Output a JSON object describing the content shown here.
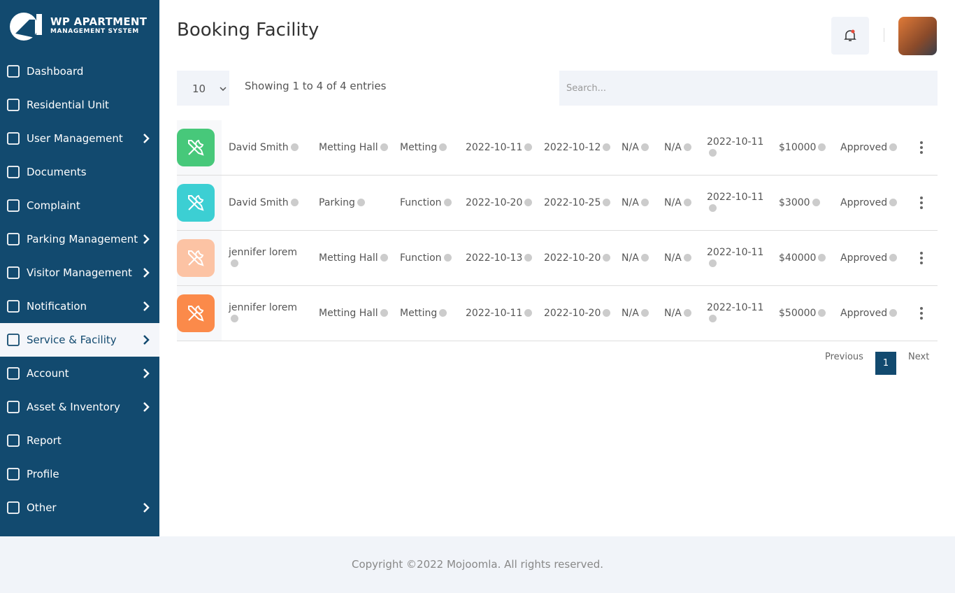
{
  "brand": {
    "line1": "WP APARTMENT",
    "line2": "MANAGEMENT SYSTEM"
  },
  "sidebar": {
    "items": [
      {
        "label": "Dashboard",
        "submenu": false,
        "active": false
      },
      {
        "label": "Residential Unit",
        "submenu": false,
        "active": false
      },
      {
        "label": "User Management",
        "submenu": true,
        "active": false
      },
      {
        "label": "Documents",
        "submenu": false,
        "active": false
      },
      {
        "label": "Complaint",
        "submenu": false,
        "active": false
      },
      {
        "label": "Parking Management",
        "submenu": true,
        "active": false
      },
      {
        "label": "Visitor Management",
        "submenu": true,
        "active": false
      },
      {
        "label": "Notification",
        "submenu": true,
        "active": false
      },
      {
        "label": "Service & Facility",
        "submenu": true,
        "active": true
      },
      {
        "label": "Account",
        "submenu": true,
        "active": false
      },
      {
        "label": "Asset & Inventory",
        "submenu": true,
        "active": false
      },
      {
        "label": "Report",
        "submenu": false,
        "active": false
      },
      {
        "label": "Profile",
        "submenu": false,
        "active": false
      },
      {
        "label": "Other",
        "submenu": true,
        "active": false
      }
    ]
  },
  "header": {
    "title": "Booking Facility"
  },
  "controls": {
    "page_size": "10",
    "info": "Showing 1 to 4 of 4 entries",
    "search_placeholder": "Search..."
  },
  "table": {
    "rows": [
      {
        "icon_color": "#47c87a",
        "cells": [
          "David Smith",
          "Metting Hall",
          "Metting",
          "2022-10-11",
          "2022-10-12",
          "N/A",
          "N/A",
          "2022-10-11",
          "$10000",
          "Approved"
        ]
      },
      {
        "icon_color": "#3ccfd3",
        "cells": [
          "David Smith",
          "Parking",
          "Function",
          "2022-10-20",
          "2022-10-25",
          "N/A",
          "N/A",
          "2022-10-11",
          "$3000",
          "Approved"
        ]
      },
      {
        "icon_color": "#fcc3a4",
        "cells": [
          "jennifer lorem",
          "Metting Hall",
          "Function",
          "2022-10-13",
          "2022-10-20",
          "N/A",
          "N/A",
          "2022-10-11",
          "$40000",
          "Approved"
        ]
      },
      {
        "icon_color": "#fb8a4a",
        "cells": [
          "jennifer lorem",
          "Metting Hall",
          "Metting",
          "2022-10-11",
          "2022-10-20",
          "N/A",
          "N/A",
          "2022-10-11",
          "$50000",
          "Approved"
        ]
      }
    ]
  },
  "pagination": {
    "previous": "Previous",
    "current": "1",
    "next": "Next"
  },
  "footer": {
    "copyright": "Copyright ©2022 Mojoomla. All rights reserved."
  }
}
